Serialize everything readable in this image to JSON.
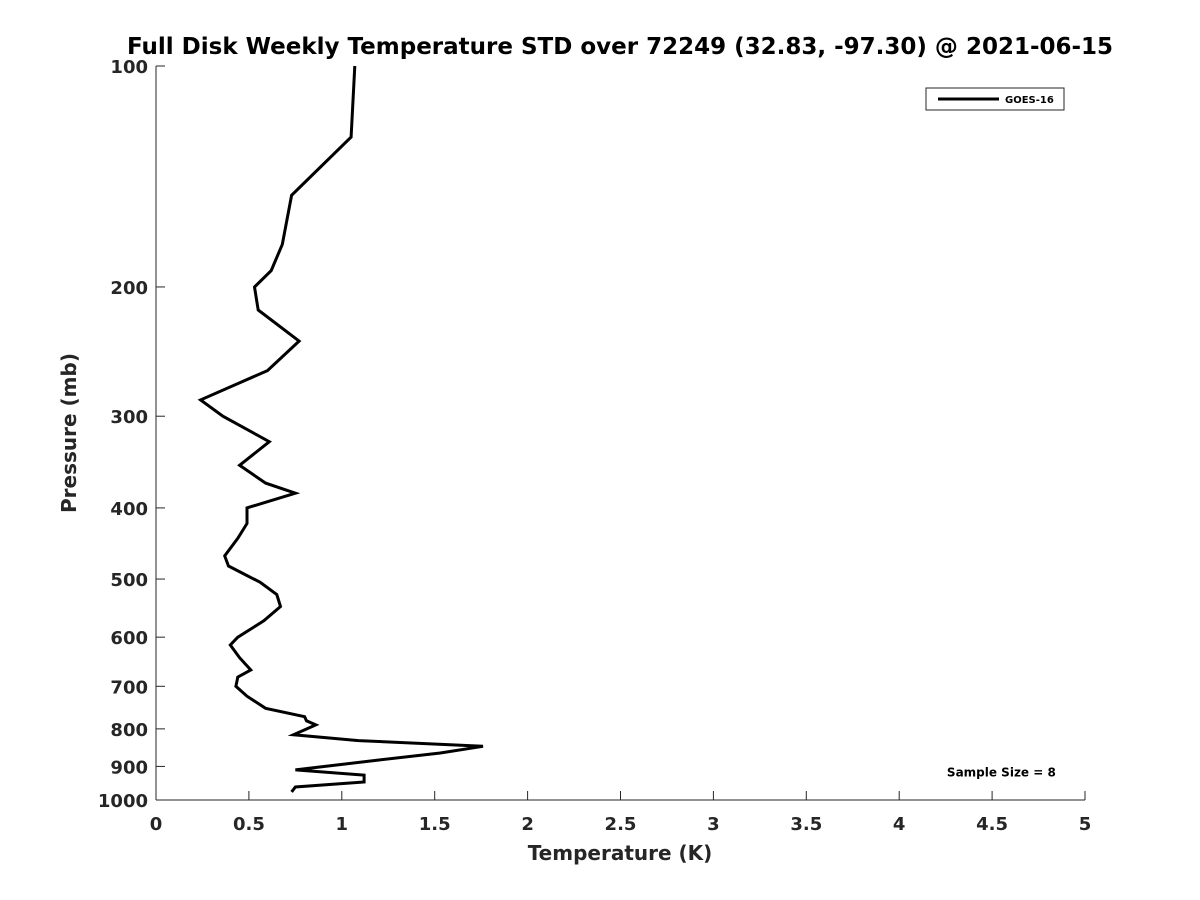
{
  "chart_data": {
    "type": "line",
    "title": "Full Disk Weekly Temperature STD over 72249 (32.83, -97.30) @ 2021-06-15",
    "xlabel": "Temperature (K)",
    "ylabel": "Pressure (mb)",
    "xlim": [
      0,
      5
    ],
    "ylim": [
      100,
      1000
    ],
    "y_scale": "log",
    "y_reversed": true,
    "grid": false,
    "legend_position": "top-right",
    "x_ticks": [
      0,
      0.5,
      1,
      1.5,
      2,
      2.5,
      3,
      3.5,
      4,
      4.5,
      5
    ],
    "x_tick_labels": [
      "0",
      "0.5",
      "1",
      "1.5",
      "2",
      "2.5",
      "3",
      "3.5",
      "4",
      "4.5",
      "5"
    ],
    "y_ticks": [
      100,
      200,
      300,
      400,
      500,
      600,
      700,
      800,
      900,
      1000
    ],
    "y_tick_labels": [
      "100",
      "200",
      "300",
      "400",
      "500",
      "600",
      "700",
      "800",
      "900",
      "1000"
    ],
    "series": [
      {
        "name": "GOES-16",
        "color": "#000000",
        "points": [
          [
            1.07,
            100
          ],
          [
            1.05,
            125
          ],
          [
            0.73,
            150
          ],
          [
            0.68,
            175
          ],
          [
            0.62,
            190
          ],
          [
            0.53,
            200
          ],
          [
            0.55,
            215
          ],
          [
            0.77,
            237
          ],
          [
            0.6,
            260
          ],
          [
            0.24,
            285
          ],
          [
            0.36,
            300
          ],
          [
            0.61,
            325
          ],
          [
            0.45,
            350
          ],
          [
            0.59,
            370
          ],
          [
            0.75,
            382
          ],
          [
            0.49,
            400
          ],
          [
            0.49,
            420
          ],
          [
            0.44,
            440
          ],
          [
            0.37,
            465
          ],
          [
            0.39,
            480
          ],
          [
            0.56,
            505
          ],
          [
            0.65,
            525
          ],
          [
            0.67,
            545
          ],
          [
            0.58,
            570
          ],
          [
            0.44,
            600
          ],
          [
            0.4,
            615
          ],
          [
            0.45,
            640
          ],
          [
            0.51,
            665
          ],
          [
            0.44,
            680
          ],
          [
            0.43,
            700
          ],
          [
            0.49,
            722
          ],
          [
            0.59,
            750
          ],
          [
            0.8,
            770
          ],
          [
            0.81,
            780
          ],
          [
            0.86,
            790
          ],
          [
            0.74,
            815
          ],
          [
            1.09,
            830
          ],
          [
            1.76,
            845
          ],
          [
            1.53,
            863
          ],
          [
            1.2,
            882
          ],
          [
            0.75,
            910
          ],
          [
            1.12,
            925
          ],
          [
            1.12,
            945
          ],
          [
            0.75,
            960
          ],
          [
            0.73,
            975
          ]
        ]
      }
    ],
    "annotations": [
      {
        "text": "Sample Size = 8",
        "x": 4.55,
        "y": 915
      }
    ]
  }
}
